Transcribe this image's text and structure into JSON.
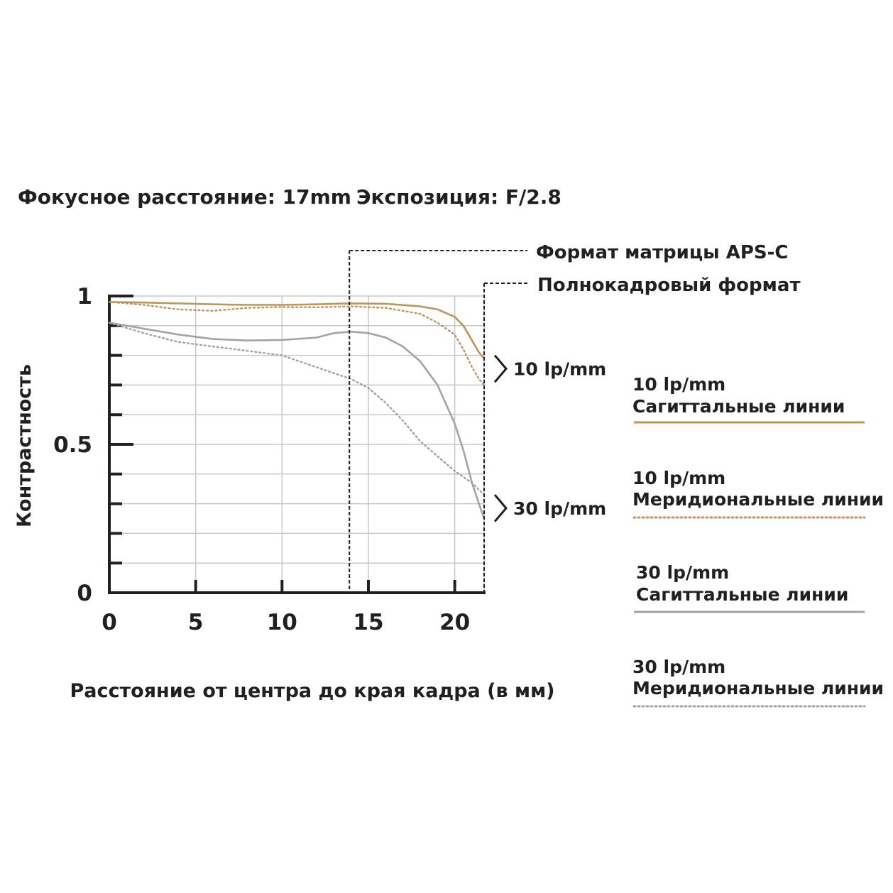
{
  "chart_data": {
    "type": "line",
    "title": "",
    "subtitle_left": "Фокусное расстояние: 17mm",
    "subtitle_right": "Экспозиция: F/2.8",
    "xlabel": "Расстояние от центра до края кадра (в мм)",
    "ylabel": "Контрастность",
    "xlim": [
      0,
      21.7
    ],
    "ylim": [
      0,
      1
    ],
    "x_ticks": [
      0,
      5,
      10,
      15,
      20
    ],
    "x_tick_labels": [
      "0",
      "5",
      "10",
      "15",
      "20"
    ],
    "y_tick_labels": [
      {
        "value": 0,
        "label": "0"
      },
      {
        "value": 0.5,
        "label": "0.5"
      },
      {
        "value": 1,
        "label": "1"
      }
    ],
    "y_minor_step": 0.1,
    "grid": true,
    "series": [
      {
        "name": "10 lp/mm Сагиттальные линии",
        "color": "#c0945f",
        "style": "solid",
        "x": [
          0,
          2,
          4,
          6,
          8,
          10,
          12,
          13.9,
          16,
          18,
          19,
          20,
          20.5,
          21,
          21.4,
          21.7
        ],
        "y": [
          0.98,
          0.978,
          0.975,
          0.972,
          0.97,
          0.97,
          0.972,
          0.975,
          0.974,
          0.965,
          0.955,
          0.93,
          0.9,
          0.85,
          0.81,
          0.79
        ]
      },
      {
        "name": "10 lp/mm Меридиональные линии",
        "color": "#c0945f",
        "style": "dotted",
        "x": [
          0,
          2,
          4,
          6,
          8,
          10,
          12,
          14,
          16,
          18,
          19,
          20,
          20.5,
          21,
          21.4,
          21.7
        ],
        "y": [
          0.98,
          0.97,
          0.955,
          0.95,
          0.96,
          0.963,
          0.962,
          0.965,
          0.96,
          0.94,
          0.91,
          0.87,
          0.82,
          0.76,
          0.72,
          0.7
        ]
      },
      {
        "name": "30 lp/mm Сагиттальные линии",
        "color": "#a3a3a3",
        "style": "solid",
        "x": [
          0,
          2,
          4,
          6,
          8,
          10,
          12,
          13,
          14,
          15,
          16,
          17,
          18,
          19,
          20,
          20.5,
          21,
          21.4,
          21.7
        ],
        "y": [
          0.91,
          0.89,
          0.87,
          0.855,
          0.85,
          0.852,
          0.86,
          0.875,
          0.88,
          0.875,
          0.86,
          0.83,
          0.78,
          0.7,
          0.57,
          0.48,
          0.37,
          0.3,
          0.25
        ]
      },
      {
        "name": "30 lp/mm Меридиональные линии",
        "color": "#a3a3a3",
        "style": "dotted",
        "x": [
          0,
          2,
          4,
          6,
          8,
          10,
          11,
          12,
          13,
          14,
          15,
          16,
          17,
          18,
          19,
          20,
          21,
          21.7
        ],
        "y": [
          0.91,
          0.875,
          0.845,
          0.83,
          0.815,
          0.8,
          0.78,
          0.76,
          0.74,
          0.72,
          0.69,
          0.64,
          0.58,
          0.51,
          0.46,
          0.41,
          0.37,
          0.33
        ]
      }
    ],
    "region_markers": [
      {
        "x": 13.9,
        "label": "Формат матрицы APS-C"
      },
      {
        "x": 21.7,
        "label": "Полнокадровый формат"
      }
    ],
    "group_labels": [
      {
        "label": "10 lp/mm",
        "y_top": 0.8,
        "y_bottom": 0.71
      },
      {
        "label": "30 lp/mm",
        "y_top": 0.33,
        "y_bottom": 0.24
      }
    ],
    "legend": {
      "placement": "right",
      "items": [
        {
          "line1": "10 lp/mm",
          "line2": "Сагиттальные линии",
          "color": "#c0945f",
          "style": "solid"
        },
        {
          "line1": "10 lp/mm",
          "line2": "Меридиональные линии",
          "color": "#c0945f",
          "style": "dotted"
        },
        {
          "line1": "30 lp/mm",
          "line2": "Сагиттальные линии",
          "color": "#a3a3a3",
          "style": "solid"
        },
        {
          "line1": "30 lp/mm",
          "line2": "Меридиональные линии",
          "color": "#a3a3a3",
          "style": "dotted"
        }
      ]
    }
  }
}
